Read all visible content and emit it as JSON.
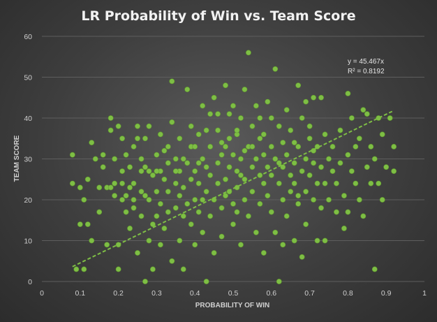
{
  "chart_data": {
    "type": "scatter",
    "title": "LR Probability  of Win vs. Team Score",
    "xlabel": "PROBABILITY OF WIN",
    "ylabel": "TEAM SCORE",
    "xlim": [
      0,
      1
    ],
    "ylim": [
      0,
      60
    ],
    "x_ticks": [
      "0",
      "0.1",
      "0.2",
      "0.3",
      "0.4",
      "0.5",
      "0.6",
      "0.7",
      "0.8",
      "0.9",
      "1"
    ],
    "y_ticks": [
      "0",
      "10",
      "20",
      "30",
      "40",
      "50",
      "60"
    ],
    "grid": "horizontal",
    "trendline": {
      "slope": 45.467,
      "intercept": 0,
      "x_range": [
        0.08,
        0.92
      ],
      "style": "dashed"
    },
    "annotations": {
      "equation": "y = 45.467x",
      "r_squared": "R² = 0.8192"
    },
    "colors": {
      "points": "#7ebe45",
      "trendline": "#7ebe45",
      "background": "#3e3e3e"
    },
    "points": [
      [
        0.08,
        31
      ],
      [
        0.08,
        24
      ],
      [
        0.09,
        3
      ],
      [
        0.1,
        23
      ],
      [
        0.1,
        14
      ],
      [
        0.11,
        20
      ],
      [
        0.11,
        3
      ],
      [
        0.12,
        25
      ],
      [
        0.12,
        14
      ],
      [
        0.13,
        10
      ],
      [
        0.13,
        34
      ],
      [
        0.14,
        30
      ],
      [
        0.15,
        17
      ],
      [
        0.15,
        23
      ],
      [
        0.16,
        31
      ],
      [
        0.16,
        28
      ],
      [
        0.17,
        23
      ],
      [
        0.17,
        9
      ],
      [
        0.18,
        40
      ],
      [
        0.18,
        37
      ],
      [
        0.18,
        23
      ],
      [
        0.19,
        24
      ],
      [
        0.19,
        30
      ],
      [
        0.19,
        21
      ],
      [
        0.2,
        9
      ],
      [
        0.2,
        3
      ],
      [
        0.2,
        38
      ],
      [
        0.21,
        27
      ],
      [
        0.21,
        24
      ],
      [
        0.21,
        20
      ],
      [
        0.22,
        17
      ],
      [
        0.22,
        31
      ],
      [
        0.23,
        13
      ],
      [
        0.23,
        23
      ],
      [
        0.23,
        28
      ],
      [
        0.24,
        33
      ],
      [
        0.24,
        24
      ],
      [
        0.24,
        20
      ],
      [
        0.25,
        38
      ],
      [
        0.25,
        35
      ],
      [
        0.25,
        7
      ],
      [
        0.26,
        27
      ],
      [
        0.26,
        30
      ],
      [
        0.26,
        16
      ],
      [
        0.27,
        28
      ],
      [
        0.27,
        21
      ],
      [
        0.27,
        0
      ],
      [
        0.28,
        20
      ],
      [
        0.28,
        38
      ],
      [
        0.28,
        10
      ],
      [
        0.29,
        26
      ],
      [
        0.29,
        14
      ],
      [
        0.29,
        3
      ],
      [
        0.3,
        22
      ],
      [
        0.3,
        31
      ],
      [
        0.3,
        16
      ],
      [
        0.31,
        19
      ],
      [
        0.31,
        27
      ],
      [
        0.31,
        9
      ],
      [
        0.32,
        25
      ],
      [
        0.32,
        13
      ],
      [
        0.32,
        32
      ],
      [
        0.33,
        22
      ],
      [
        0.33,
        29
      ],
      [
        0.33,
        17
      ],
      [
        0.34,
        49
      ],
      [
        0.34,
        39
      ],
      [
        0.34,
        5
      ],
      [
        0.35,
        24
      ],
      [
        0.35,
        18
      ],
      [
        0.35,
        30
      ],
      [
        0.36,
        21
      ],
      [
        0.36,
        27
      ],
      [
        0.36,
        10
      ],
      [
        0.37,
        16
      ],
      [
        0.37,
        23
      ],
      [
        0.37,
        3
      ],
      [
        0.38,
        47
      ],
      [
        0.38,
        29
      ],
      [
        0.38,
        19
      ],
      [
        0.39,
        25
      ],
      [
        0.39,
        14
      ],
      [
        0.39,
        33
      ],
      [
        0.4,
        20
      ],
      [
        0.4,
        27
      ],
      [
        0.4,
        9
      ],
      [
        0.41,
        17
      ],
      [
        0.41,
        24
      ],
      [
        0.41,
        36
      ],
      [
        0.42,
        30
      ],
      [
        0.42,
        43
      ],
      [
        0.42,
        12
      ],
      [
        0.43,
        22
      ],
      [
        0.43,
        28
      ],
      [
        0.43,
        0
      ],
      [
        0.44,
        26
      ],
      [
        0.44,
        16
      ],
      [
        0.44,
        33
      ],
      [
        0.45,
        45
      ],
      [
        0.45,
        20
      ],
      [
        0.45,
        7
      ],
      [
        0.46,
        29
      ],
      [
        0.46,
        24
      ],
      [
        0.46,
        37
      ],
      [
        0.47,
        18
      ],
      [
        0.47,
        31
      ],
      [
        0.47,
        11
      ],
      [
        0.48,
        48
      ],
      [
        0.48,
        25
      ],
      [
        0.48,
        21
      ],
      [
        0.49,
        41
      ],
      [
        0.49,
        35
      ],
      [
        0.49,
        28
      ],
      [
        0.5,
        19
      ],
      [
        0.5,
        31
      ],
      [
        0.5,
        14
      ],
      [
        0.51,
        36
      ],
      [
        0.51,
        27
      ],
      [
        0.51,
        23
      ],
      [
        0.52,
        30
      ],
      [
        0.52,
        9
      ],
      [
        0.52,
        40
      ],
      [
        0.53,
        25
      ],
      [
        0.53,
        20
      ],
      [
        0.53,
        47
      ],
      [
        0.54,
        56
      ],
      [
        0.54,
        33
      ],
      [
        0.54,
        16
      ],
      [
        0.55,
        28
      ],
      [
        0.55,
        38
      ],
      [
        0.55,
        22
      ],
      [
        0.56,
        30
      ],
      [
        0.56,
        12
      ],
      [
        0.56,
        43
      ],
      [
        0.57,
        26
      ],
      [
        0.57,
        19
      ],
      [
        0.57,
        35
      ],
      [
        0.58,
        24
      ],
      [
        0.58,
        31
      ],
      [
        0.58,
        7
      ],
      [
        0.59,
        44
      ],
      [
        0.59,
        28
      ],
      [
        0.59,
        21
      ],
      [
        0.6,
        33
      ],
      [
        0.6,
        17
      ],
      [
        0.6,
        26
      ],
      [
        0.61,
        52
      ],
      [
        0.61,
        30
      ],
      [
        0.61,
        12
      ],
      [
        0.62,
        24
      ],
      [
        0.62,
        0
      ],
      [
        0.62,
        38
      ],
      [
        0.63,
        28
      ],
      [
        0.63,
        20
      ],
      [
        0.63,
        34
      ],
      [
        0.64,
        42
      ],
      [
        0.64,
        31
      ],
      [
        0.64,
        16
      ],
      [
        0.65,
        26
      ],
      [
        0.65,
        22
      ],
      [
        0.65,
        37
      ],
      [
        0.66,
        29
      ],
      [
        0.66,
        10
      ],
      [
        0.66,
        24
      ],
      [
        0.67,
        48
      ],
      [
        0.67,
        33
      ],
      [
        0.67,
        19
      ],
      [
        0.68,
        27
      ],
      [
        0.68,
        6
      ],
      [
        0.68,
        40
      ],
      [
        0.69,
        30
      ],
      [
        0.69,
        22
      ],
      [
        0.69,
        14
      ],
      [
        0.7,
        35
      ],
      [
        0.7,
        26
      ],
      [
        0.7,
        38
      ],
      [
        0.71,
        20
      ],
      [
        0.71,
        29
      ],
      [
        0.71,
        45
      ],
      [
        0.72,
        24
      ],
      [
        0.72,
        33
      ],
      [
        0.72,
        10
      ],
      [
        0.73,
        45
      ],
      [
        0.73,
        28
      ],
      [
        0.73,
        18
      ],
      [
        0.74,
        36
      ],
      [
        0.74,
        24
      ],
      [
        0.74,
        10
      ],
      [
        0.75,
        30
      ],
      [
        0.75,
        20
      ],
      [
        0.76,
        27
      ],
      [
        0.76,
        33
      ],
      [
        0.77,
        24
      ],
      [
        0.77,
        17
      ],
      [
        0.78,
        29
      ],
      [
        0.78,
        37
      ],
      [
        0.79,
        21
      ],
      [
        0.79,
        13
      ],
      [
        0.8,
        46
      ],
      [
        0.8,
        17
      ],
      [
        0.8,
        31
      ],
      [
        0.81,
        27
      ],
      [
        0.81,
        40
      ],
      [
        0.82,
        33
      ],
      [
        0.82,
        24
      ],
      [
        0.83,
        35
      ],
      [
        0.83,
        20
      ],
      [
        0.84,
        42
      ],
      [
        0.84,
        16
      ],
      [
        0.85,
        28
      ],
      [
        0.85,
        41
      ],
      [
        0.86,
        24
      ],
      [
        0.86,
        33
      ],
      [
        0.87,
        30
      ],
      [
        0.87,
        3
      ],
      [
        0.88,
        40
      ],
      [
        0.88,
        24
      ],
      [
        0.89,
        36
      ],
      [
        0.89,
        20
      ],
      [
        0.9,
        28
      ],
      [
        0.91,
        40
      ],
      [
        0.92,
        33
      ],
      [
        0.92,
        27
      ],
      [
        0.46,
        41
      ],
      [
        0.47,
        34
      ],
      [
        0.5,
        43
      ],
      [
        0.51,
        37
      ],
      [
        0.52,
        26
      ],
      [
        0.53,
        32
      ],
      [
        0.48,
        33
      ],
      [
        0.49,
        22
      ],
      [
        0.51,
        17
      ],
      [
        0.55,
        33
      ],
      [
        0.57,
        40
      ],
      [
        0.58,
        36
      ],
      [
        0.6,
        40
      ],
      [
        0.62,
        29
      ],
      [
        0.63,
        9
      ],
      [
        0.66,
        34
      ],
      [
        0.67,
        21
      ],
      [
        0.43,
        37
      ],
      [
        0.44,
        41
      ],
      [
        0.42,
        20
      ],
      [
        0.41,
        29
      ],
      [
        0.4,
        33
      ],
      [
        0.39,
        38
      ],
      [
        0.37,
        30
      ],
      [
        0.36,
        35
      ],
      [
        0.35,
        27
      ],
      [
        0.33,
        33
      ],
      [
        0.31,
        36
      ],
      [
        0.3,
        27
      ],
      [
        0.28,
        27
      ],
      [
        0.27,
        35
      ],
      [
        0.26,
        22
      ],
      [
        0.24,
        18
      ],
      [
        0.22,
        21
      ],
      [
        0.21,
        35
      ],
      [
        0.69,
        44
      ],
      [
        0.71,
        32
      ]
    ]
  }
}
